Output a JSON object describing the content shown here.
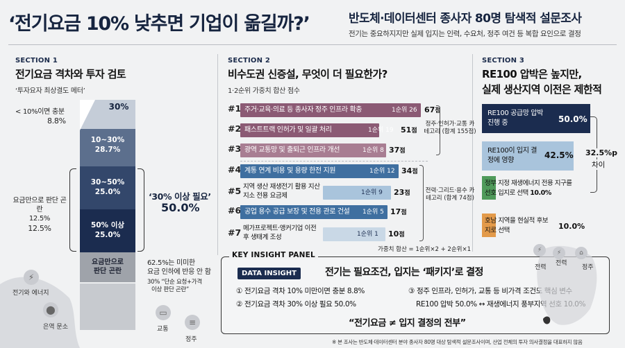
{
  "header": {
    "title": "‘전기요금 10% 낮추면 기업이 옮길까?’",
    "subtitle": "반도체·데이터센터 종사자 80명 탐색적 설문조사",
    "description": "전기는 중요하지지만 실제 입지는 인력, 수요처, 정주 여건 등 복합 요인으로 결정"
  },
  "section1": {
    "label": "SECTION 1",
    "title": "전기요금 격차와 투자 검토",
    "subtitle": "‘투자요자 최상결도 메터’",
    "top_note_label": "< 10%이면 충분",
    "top_note_value": "8.8%",
    "segments": [
      {
        "label": "30%",
        "color": "#c5cdd8"
      },
      {
        "label": "10~30%",
        "value": "28.7%",
        "color": "#5c6f8d"
      },
      {
        "label": "30~50%",
        "value": "25.0%",
        "color": "#33476b"
      },
      {
        "label": "50% 이상",
        "value": "25.0%",
        "color": "#1b2c4f"
      },
      {
        "label": "요금만으로 판단 곤란",
        "color": "#9fa3aa"
      }
    ],
    "left_label": "요금만으로 판단 곤란",
    "left_value_1": "12.5%",
    "left_value_2": "12.5%",
    "bracket_label": "‘30% 이상 필요’",
    "bracket_value": "50.0%",
    "bottom_note_1": "62.5%는 미미한",
    "bottom_note_2": "요금 인하에 반응 안 함",
    "bottom_note_3": "30% “단순 요청+가격",
    "bottom_note_4": "이상 판단 곤란”",
    "map_labels": [
      "전기와 에너지",
      "은역 문소",
      "교통",
      "정주"
    ]
  },
  "section2": {
    "label": "SECTION 2",
    "title": "비수도권 신증설, 무엇이 더 필요한가?",
    "subtitle": "1·2순위 가중치 합산 점수",
    "items": [
      {
        "rank": "#1",
        "label": "주거·교육·의료 등 종사자 정주 인프라 확충",
        "first": "1순위 26",
        "score": 67,
        "unit": "점"
      },
      {
        "rank": "#2",
        "label": "패스트트랙 인허가 및 일괄 처리",
        "first": "1순위 19",
        "score": 51,
        "unit": "점"
      },
      {
        "rank": "#3",
        "label": "광역 교통망 및 출퇴근 인프라 개선",
        "first": "1순위 8",
        "score": 37,
        "unit": "점"
      },
      {
        "rank": "#4",
        "label": "계통 연계 비용 및 용량 한전 지원",
        "first": "1순위 12",
        "score": 34,
        "unit": "점"
      },
      {
        "rank": "#5",
        "label": "지역 생산 재생전기 활용 지산지소 전용 요금제",
        "first": "1순위 9",
        "score": 23,
        "unit": "점"
      },
      {
        "rank": "#6",
        "label": "공업 용수 공급 보장 및 전용 관로 건설",
        "first": "1순위 5",
        "score": 17,
        "unit": "점"
      },
      {
        "rank": "#7",
        "label": "메가프로젝트·앵커기업 이전 후 생태계 조성",
        "first": "1순위 1",
        "score": 10,
        "unit": "점"
      }
    ],
    "group1_label": "정주·인허가·교통 카테고리 (합계 155점)",
    "group2_label": "전력·그리드·용수 카테고리 (합계 74점)",
    "formula": "가중치 합산 = 1순위×2 + 2순위×1"
  },
  "section3": {
    "label": "SECTION 3",
    "title_1": "RE100 압박은 높지만,",
    "title_2": "실제 생산지역 이전은 제한적",
    "items": [
      {
        "text": "RE100 공급망 압박 진행 중",
        "value": "50.0%"
      },
      {
        "text": "RE100이 입지 결정에 영향",
        "value": "42.5%"
      },
      {
        "text": "정부 지정 재생에너지 전용 지구를 선호 입지로 선택",
        "value": "10.0%"
      },
      {
        "text": "호남 지역을 현실적 후보지로 선택",
        "value": "10.0%"
      }
    ],
    "diff_value": "32.5%p",
    "diff_label": "차이"
  },
  "insight": {
    "panel_label": "KEY INSIGHT PANEL",
    "badge": "DATA INSIGHT",
    "headline": "전기는 필요조건, 입지는 ‘패키지’로 결정",
    "point1": "① 전기요금 격차 10% 미만이면 충분 8.8%",
    "point2": "② 전기요금 격차 30% 이상 필요 50.0%",
    "point3": "③ 정주 인프라, 인허가, 교통 등 비가격 조건도 핵심 변수",
    "point4": "RE100 압박 50.0% ↔ 재생에너지 풍부지역 선호 10.0%",
    "quote": "“전기요금 ≠ 입지 결정의 전부”",
    "map_labels": [
      "전력",
      "전력",
      "정주"
    ]
  },
  "footnote": "※ 본 조사는 반도체·데이터센터 분야 종사자 80명 대상 탐색적 설문조사이며, 산업 전체의 투자 의사결정을 대표하지 않음",
  "colors": {
    "navy": "#1b2c4f",
    "mauve": "#8b5a74",
    "mauve_light": "#a87d92",
    "blue": "#3f6fa0",
    "blue_light": "#a9c4dc",
    "green": "#4f9a5a",
    "orange": "#e39a4a"
  }
}
